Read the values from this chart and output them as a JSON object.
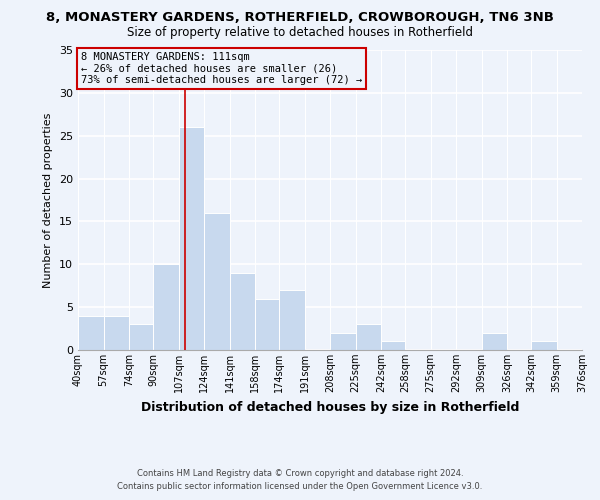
{
  "title": "8, MONASTERY GARDENS, ROTHERFIELD, CROWBOROUGH, TN6 3NB",
  "subtitle": "Size of property relative to detached houses in Rotherfield",
  "xlabel": "Distribution of detached houses by size in Rotherfield",
  "ylabel": "Number of detached properties",
  "bins": [
    40,
    57,
    74,
    90,
    107,
    124,
    141,
    158,
    174,
    191,
    208,
    225,
    242,
    258,
    275,
    292,
    309,
    326,
    342,
    359,
    376
  ],
  "counts": [
    4,
    4,
    3,
    10,
    26,
    16,
    9,
    6,
    7,
    0,
    2,
    3,
    1,
    0,
    0,
    0,
    2,
    0,
    1,
    0
  ],
  "tick_labels": [
    "40sqm",
    "57sqm",
    "74sqm",
    "90sqm",
    "107sqm",
    "124sqm",
    "141sqm",
    "158sqm",
    "174sqm",
    "191sqm",
    "208sqm",
    "225sqm",
    "242sqm",
    "258sqm",
    "275sqm",
    "292sqm",
    "309sqm",
    "326sqm",
    "342sqm",
    "359sqm",
    "376sqm"
  ],
  "bar_color": "#c8d9ee",
  "bar_edge_color": "#ffffff",
  "property_line_x": 111,
  "property_line_color": "#cc0000",
  "ylim": [
    0,
    35
  ],
  "yticks": [
    0,
    5,
    10,
    15,
    20,
    25,
    30,
    35
  ],
  "annotation_title": "8 MONASTERY GARDENS: 111sqm",
  "annotation_line1": "← 26% of detached houses are smaller (26)",
  "annotation_line2": "73% of semi-detached houses are larger (72) →",
  "annotation_box_edge": "#cc0000",
  "footer_line1": "Contains HM Land Registry data © Crown copyright and database right 2024.",
  "footer_line2": "Contains public sector information licensed under the Open Government Licence v3.0.",
  "background_color": "#eef3fb"
}
